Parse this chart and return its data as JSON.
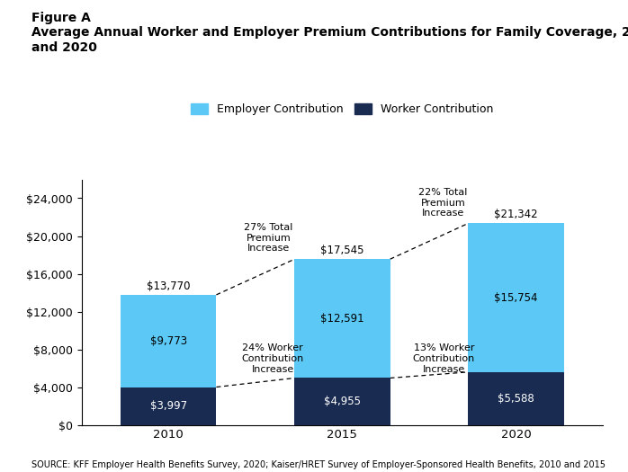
{
  "years": [
    "2010",
    "2015",
    "2020"
  ],
  "employer_contributions": [
    9773,
    12591,
    15754
  ],
  "worker_contributions": [
    3997,
    4955,
    5588
  ],
  "totals": [
    13770,
    17545,
    21342
  ],
  "employer_color": "#5bc8f5",
  "worker_color": "#1a2b52",
  "bar_width": 0.55,
  "ylim": [
    0,
    26000
  ],
  "yticks": [
    0,
    4000,
    8000,
    12000,
    16000,
    20000,
    24000
  ],
  "figure_label": "Figure A",
  "source_text": "SOURCE: KFF Employer Health Benefits Survey, 2020; Kaiser/HRET Survey of Employer-Sponsored Health Benefits, 2010 and 2015",
  "legend_employer": "Employer Contribution",
  "legend_worker": "Worker Contribution",
  "annotation_27_text": "27% Total\nPremium\nIncrease",
  "annotation_22_text": "22% Total\nPremium\nIncrease",
  "annotation_24_text": "24% Worker\nContribution\nIncrease",
  "annotation_13_text": "13% Worker\nContribution\nIncrease",
  "x_positions": [
    0,
    1,
    2
  ]
}
